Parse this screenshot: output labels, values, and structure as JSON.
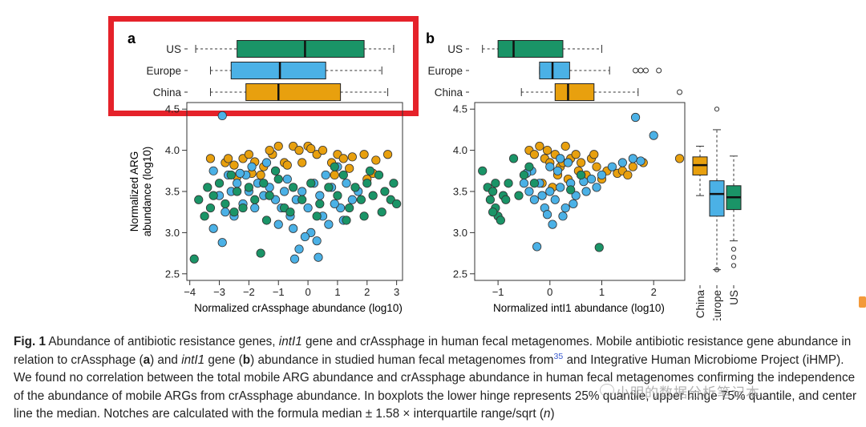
{
  "colors": {
    "us": "#1a9467",
    "europe": "#4bb1e6",
    "china": "#e8a00e",
    "highlight": "#e5222a"
  },
  "panels": {
    "a": {
      "label": "a",
      "box_groups": [
        "US",
        "Europe",
        "China"
      ],
      "xlabel": "Normalized crAssphage abundance (log10)",
      "ylabel_line1": "Normalized ARG",
      "ylabel_line2": "abundance (log10)",
      "x_ticks": [
        "−4",
        "−3",
        "−2",
        "−1",
        "0",
        "1",
        "2",
        "3"
      ],
      "y_ticks": [
        "2.5",
        "3.0",
        "3.5",
        "4.0",
        "4.5"
      ]
    },
    "b": {
      "label": "b",
      "box_groups": [
        "US",
        "Europe",
        "China"
      ],
      "xlabel": "Normalized intI1 abundance (log10)",
      "x_ticks": [
        "−1",
        "0",
        "1",
        "2"
      ],
      "y_ticks": [
        "2.5",
        "3.0",
        "3.5",
        "4.0",
        "4.5"
      ],
      "side_groups": [
        "China",
        "Europe",
        "US"
      ]
    }
  },
  "chart_data": [
    {
      "type": "scatter",
      "panel": "a",
      "xlabel": "Normalized crAssphage abundance (log10)",
      "ylabel": "Normalized ARG abundance (log10)",
      "xlim": [
        -4.1,
        3.2
      ],
      "ylim": [
        2.42,
        4.58
      ],
      "x_ticks": [
        -4,
        -3,
        -2,
        -1,
        0,
        1,
        2,
        3
      ],
      "y_ticks": [
        2.5,
        3.0,
        3.5,
        4.0,
        4.5
      ],
      "marginal_boxplots": [
        {
          "group": "US",
          "whisker_low": -3.8,
          "q1": -2.4,
          "median": -0.1,
          "q3": 1.9,
          "whisker_high": 2.9
        },
        {
          "group": "Europe",
          "whisker_low": -3.3,
          "q1": -2.6,
          "median": -0.95,
          "q3": 0.6,
          "whisker_high": 2.5
        },
        {
          "group": "China",
          "whisker_low": -3.3,
          "q1": -2.1,
          "median": -1.0,
          "q3": 1.1,
          "whisker_high": 2.7
        }
      ],
      "series": [
        {
          "group": "China",
          "points": [
            [
              -3.3,
              3.9
            ],
            [
              -2.8,
              3.85
            ],
            [
              -2.5,
              3.82
            ],
            [
              -2.2,
              3.9
            ],
            [
              -2.0,
              3.95
            ],
            [
              -1.8,
              3.86
            ],
            [
              -1.5,
              3.8
            ],
            [
              -1.2,
              3.95
            ],
            [
              -1.0,
              4.05
            ],
            [
              -0.8,
              3.85
            ],
            [
              -0.5,
              4.05
            ],
            [
              -0.3,
              4.0
            ],
            [
              0.0,
              4.05
            ],
            [
              0.3,
              3.95
            ],
            [
              0.5,
              4.0
            ],
            [
              0.8,
              3.85
            ],
            [
              1.0,
              3.95
            ],
            [
              1.2,
              3.9
            ],
            [
              1.5,
              3.92
            ],
            [
              1.9,
              3.95
            ],
            [
              2.3,
              3.88
            ],
            [
              2.7,
              3.95
            ],
            [
              -2.7,
              3.9
            ],
            [
              -1.6,
              3.7
            ],
            [
              -1.1,
              3.75
            ],
            [
              -0.2,
              3.85
            ],
            [
              1.4,
              3.78
            ],
            [
              2.2,
              3.72
            ],
            [
              -2.4,
              3.68
            ],
            [
              -1.9,
              3.72
            ],
            [
              -0.7,
              3.82
            ],
            [
              0.9,
              3.7
            ],
            [
              2.0,
              3.65
            ],
            [
              0.1,
              4.02
            ],
            [
              -1.3,
              4.0
            ]
          ]
        },
        {
          "group": "Europe",
          "points": [
            [
              -2.9,
              4.42
            ],
            [
              -3.2,
              3.75
            ],
            [
              -3.0,
              3.45
            ],
            [
              -2.8,
              3.25
            ],
            [
              -2.6,
              3.5
            ],
            [
              -2.5,
              3.2
            ],
            [
              -2.4,
              3.6
            ],
            [
              -2.2,
              3.35
            ],
            [
              -2.1,
              3.7
            ],
            [
              -2.0,
              3.5
            ],
            [
              -1.8,
              3.3
            ],
            [
              -1.7,
              3.6
            ],
            [
              -1.5,
              3.45
            ],
            [
              -1.3,
              3.55
            ],
            [
              -1.1,
              3.4
            ],
            [
              -1.0,
              3.1
            ],
            [
              -0.9,
              3.3
            ],
            [
              -0.8,
              3.5
            ],
            [
              -0.6,
              3.2
            ],
            [
              -0.5,
              3.05
            ],
            [
              -0.4,
              3.4
            ],
            [
              -0.3,
              2.8
            ],
            [
              -0.2,
              3.5
            ],
            [
              0.0,
              3.3
            ],
            [
              0.1,
              3.0
            ],
            [
              0.2,
              3.6
            ],
            [
              0.3,
              2.9
            ],
            [
              0.4,
              3.45
            ],
            [
              0.5,
              3.2
            ],
            [
              0.6,
              3.7
            ],
            [
              0.7,
              3.1
            ],
            [
              0.8,
              3.55
            ],
            [
              1.0,
              3.8
            ],
            [
              1.1,
              3.3
            ],
            [
              1.3,
              3.6
            ],
            [
              1.5,
              3.4
            ],
            [
              1.7,
              3.5
            ],
            [
              -2.9,
              2.88
            ],
            [
              -2.3,
              3.72
            ],
            [
              -1.4,
              3.85
            ],
            [
              -0.1,
              2.95
            ],
            [
              0.9,
              3.35
            ],
            [
              -3.2,
              3.05
            ],
            [
              -0.7,
              3.65
            ],
            [
              0.35,
              2.7
            ],
            [
              -0.45,
              2.68
            ],
            [
              1.2,
              3.15
            ],
            [
              -1.9,
              3.8
            ],
            [
              -2.7,
              3.7
            ]
          ]
        },
        {
          "group": "US",
          "points": [
            [
              -3.85,
              2.68
            ],
            [
              -3.7,
              3.4
            ],
            [
              -3.5,
              3.2
            ],
            [
              -3.4,
              3.55
            ],
            [
              -3.2,
              3.45
            ],
            [
              -3.0,
              3.6
            ],
            [
              -2.8,
              3.35
            ],
            [
              -2.6,
              3.7
            ],
            [
              -2.4,
              3.5
            ],
            [
              -2.2,
              3.3
            ],
            [
              -2.0,
              3.55
            ],
            [
              -1.8,
              3.4
            ],
            [
              -1.6,
              2.75
            ],
            [
              -1.5,
              3.6
            ],
            [
              -1.3,
              3.45
            ],
            [
              -1.0,
              3.65
            ],
            [
              -0.8,
              3.3
            ],
            [
              -0.5,
              3.55
            ],
            [
              -0.2,
              3.4
            ],
            [
              0.1,
              3.6
            ],
            [
              0.4,
              3.35
            ],
            [
              0.7,
              3.55
            ],
            [
              1.0,
              3.45
            ],
            [
              1.2,
              3.7
            ],
            [
              1.4,
              3.3
            ],
            [
              1.6,
              3.55
            ],
            [
              1.8,
              3.4
            ],
            [
              2.0,
              3.6
            ],
            [
              2.2,
              3.45
            ],
            [
              2.4,
              3.7
            ],
            [
              2.6,
              3.5
            ],
            [
              2.8,
              3.4
            ],
            [
              2.9,
              3.6
            ],
            [
              3.0,
              3.35
            ],
            [
              2.5,
              3.25
            ],
            [
              1.9,
              3.2
            ],
            [
              1.3,
              3.15
            ],
            [
              0.3,
              3.2
            ],
            [
              -0.6,
              3.25
            ],
            [
              -1.4,
              3.15
            ],
            [
              -2.5,
              3.25
            ],
            [
              -3.3,
              3.3
            ],
            [
              2.1,
              3.75
            ],
            [
              0.9,
              3.8
            ],
            [
              -1.1,
              3.75
            ]
          ]
        }
      ]
    },
    {
      "type": "scatter",
      "panel": "b",
      "xlabel": "Normalized intI1 abundance (log10)",
      "ylabel": "Normalized ARG abundance (log10)",
      "xlim": [
        -1.45,
        2.6
      ],
      "ylim": [
        2.42,
        4.58
      ],
      "x_ticks": [
        -1,
        0,
        1,
        2
      ],
      "y_ticks": [
        2.5,
        3.0,
        3.5,
        4.0,
        4.5
      ],
      "marginal_boxplots": [
        {
          "group": "US",
          "whisker_low": -1.3,
          "q1": -1.0,
          "median": -0.7,
          "q3": 0.25,
          "whisker_high": 1.0
        },
        {
          "group": "Europe",
          "whisker_low": -0.2,
          "q1": -0.2,
          "median": 0.05,
          "q3": 0.38,
          "whisker_high": 1.15,
          "outliers": [
            1.65,
            1.75,
            1.85,
            2.1
          ]
        },
        {
          "group": "China",
          "whisker_low": -0.55,
          "q1": 0.1,
          "median": 0.35,
          "q3": 0.85,
          "whisker_high": 1.7,
          "outliers": [
            2.5
          ]
        }
      ],
      "side_boxplots": [
        {
          "group": "China",
          "whisker_low": 3.45,
          "q1": 3.7,
          "median": 3.82,
          "q3": 3.92,
          "whisker_high": 4.05
        },
        {
          "group": "Europe",
          "whisker_low": 2.55,
          "q1": 3.2,
          "median": 3.47,
          "q3": 3.63,
          "whisker_high": 4.25,
          "outliers": [
            4.5,
            2.55
          ]
        },
        {
          "group": "US",
          "whisker_low": 2.9,
          "q1": 3.28,
          "median": 3.43,
          "q3": 3.57,
          "whisker_high": 3.93,
          "outliers": [
            2.8,
            2.7,
            2.6
          ]
        }
      ],
      "series": [
        {
          "group": "China",
          "points": [
            [
              -0.4,
              4.0
            ],
            [
              -0.3,
              3.95
            ],
            [
              -0.2,
              4.05
            ],
            [
              -0.1,
              3.9
            ],
            [
              0.0,
              3.85
            ],
            [
              0.1,
              3.95
            ],
            [
              0.2,
              3.8
            ],
            [
              0.3,
              4.05
            ],
            [
              0.4,
              3.9
            ],
            [
              0.5,
              3.95
            ],
            [
              0.6,
              3.85
            ],
            [
              0.7,
              3.7
            ],
            [
              0.8,
              3.9
            ],
            [
              0.9,
              3.8
            ],
            [
              1.0,
              3.65
            ],
            [
              1.1,
              3.75
            ],
            [
              1.3,
              3.72
            ],
            [
              1.4,
              3.75
            ],
            [
              1.6,
              3.8
            ],
            [
              1.8,
              3.85
            ],
            [
              2.5,
              3.9
            ],
            [
              0.15,
              3.7
            ],
            [
              0.35,
              3.65
            ],
            [
              -0.15,
              3.6
            ],
            [
              0.05,
              3.55
            ],
            [
              0.55,
              3.75
            ],
            [
              1.5,
              3.7
            ],
            [
              0.85,
              3.95
            ],
            [
              -0.05,
              4.0
            ],
            [
              0.25,
              3.85
            ]
          ]
        },
        {
          "group": "Europe",
          "points": [
            [
              -0.5,
              3.6
            ],
            [
              -0.4,
              3.5
            ],
            [
              -0.3,
              3.4
            ],
            [
              -0.2,
              3.6
            ],
            [
              -0.1,
              3.3
            ],
            [
              0.0,
              3.5
            ],
            [
              0.1,
              3.4
            ],
            [
              0.2,
              3.55
            ],
            [
              0.3,
              3.3
            ],
            [
              0.4,
              3.6
            ],
            [
              0.5,
              3.45
            ],
            [
              0.6,
              3.7
            ],
            [
              0.7,
              3.5
            ],
            [
              0.8,
              3.65
            ],
            [
              0.9,
              3.55
            ],
            [
              1.0,
              3.7
            ],
            [
              1.2,
              3.8
            ],
            [
              1.4,
              3.85
            ],
            [
              1.6,
              3.9
            ],
            [
              1.65,
              4.4
            ],
            [
              1.75,
              3.87
            ],
            [
              2.0,
              4.18
            ],
            [
              -0.25,
              2.83
            ],
            [
              -0.05,
              3.22
            ],
            [
              0.15,
              3.75
            ],
            [
              0.35,
              3.85
            ],
            [
              -0.35,
              3.75
            ],
            [
              0.05,
              3.1
            ],
            [
              0.25,
              3.2
            ],
            [
              -0.15,
              3.45
            ],
            [
              0.45,
              3.35
            ],
            [
              0.65,
              3.62
            ],
            [
              -0.45,
              3.72
            ],
            [
              0.0,
              3.8
            ],
            [
              0.2,
              3.9
            ]
          ]
        },
        {
          "group": "US",
          "points": [
            [
              -1.3,
              3.75
            ],
            [
              -1.2,
              3.55
            ],
            [
              -1.15,
              3.4
            ],
            [
              -1.1,
              3.5
            ],
            [
              -1.05,
              3.3
            ],
            [
              -1.0,
              3.2
            ],
            [
              -0.95,
              3.15
            ],
            [
              -1.05,
              3.6
            ],
            [
              -0.9,
              3.45
            ],
            [
              -0.8,
              3.6
            ],
            [
              -0.7,
              3.9
            ],
            [
              -0.6,
              3.45
            ],
            [
              -0.5,
              3.7
            ],
            [
              -0.4,
              3.8
            ],
            [
              -0.3,
              3.6
            ],
            [
              0.4,
              3.52
            ],
            [
              0.6,
              3.7
            ],
            [
              0.95,
              2.82
            ],
            [
              -1.1,
              3.25
            ],
            [
              -0.85,
              3.4
            ]
          ]
        }
      ]
    }
  ],
  "caption": {
    "fig_label": "Fig. 1",
    "p1": " Abundance of antibiotic resistance genes, ",
    "intl1_a": "intI1",
    "p2": " gene and crAssphage in human fecal metagenomes. Mobile antibiotic resistance gene abundance in relation to crAssphage (",
    "a": "a",
    "p3": ") and ",
    "intl1_b": "intI1",
    "p4": " gene (",
    "b": "b",
    "p5": ") abundance in studied human fecal metagenomes from",
    "ref": "35",
    "p6": " and Integrative Human Microbiome Project (iHMP). We found no correlation between the total mobile ARG abundance and crAssphage abundance in human fecal metagenomes confirming the independence of the abundance of mobile ARGs from crAssphage abundance. In boxplots the lower hinge represents 25% quantile, upper hinge 75% quantile, and center line the median. Notches are calculated with the formula median ± 1.58 × interquartile range/sqrt (",
    "n": "n",
    "p7": ")"
  },
  "watermark": "小明的数据分析笔记本"
}
